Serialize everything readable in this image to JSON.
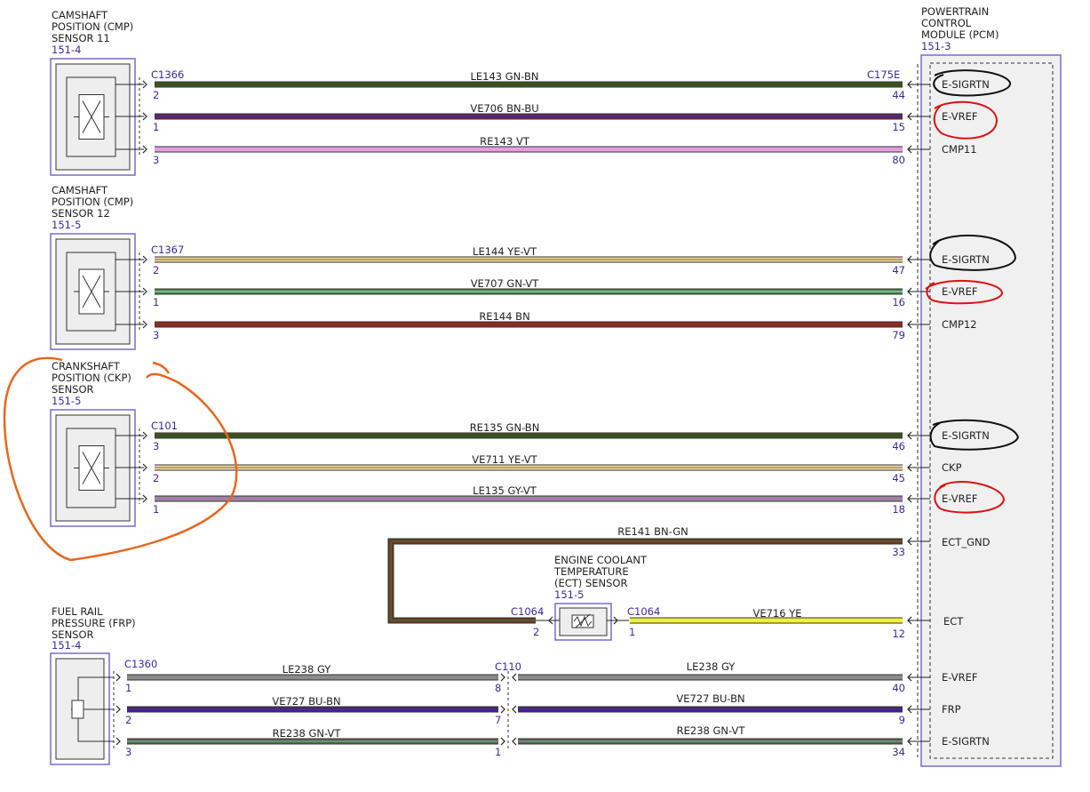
{
  "pcm": {
    "title": [
      "POWERTRAIN",
      "CONTROL",
      "MODULE (PCM)"
    ],
    "ref": "151-3",
    "connector": "C175E"
  },
  "sensors": [
    {
      "name": [
        "CAMSHAFT",
        "POSITION (CMP)",
        "SENSOR 11"
      ],
      "ref": "151-4",
      "connector": "C1366",
      "wires": [
        {
          "circuit": "LE143  GN-BN",
          "pin": 2,
          "pcm_pin": 44,
          "signal": "E-SIGRTN"
        },
        {
          "circuit": "VE706  BN-BU",
          "pin": 1,
          "pcm_pin": 15,
          "signal": "E-VREF"
        },
        {
          "circuit": "RE143   VT",
          "pin": 3,
          "pcm_pin": 80,
          "signal": "CMP11"
        }
      ]
    },
    {
      "name": [
        "CAMSHAFT",
        "POSITION (CMP)",
        "SENSOR 12"
      ],
      "ref": "151-5",
      "connector": "C1367",
      "wires": [
        {
          "circuit": "LE144  YE-VT",
          "pin": 2,
          "pcm_pin": 47,
          "signal": "E-SIGRTN"
        },
        {
          "circuit": "VE707  GN-VT",
          "pin": 1,
          "pcm_pin": 16,
          "signal": "E-VREF"
        },
        {
          "circuit": "RE144   BN",
          "pin": 3,
          "pcm_pin": 79,
          "signal": "CMP12"
        }
      ]
    },
    {
      "name": [
        "CRANKSHAFT",
        "POSITION (CKP)",
        "SENSOR"
      ],
      "ref": "151-5",
      "connector": "C101",
      "wires": [
        {
          "circuit": "RE135  GN-BN",
          "pin": 3,
          "pcm_pin": 46,
          "signal": "E-SIGRTN"
        },
        {
          "circuit": "VE711  YE-VT",
          "pin": 2,
          "pcm_pin": 45,
          "signal": "CKP"
        },
        {
          "circuit": "LE135  GY-VT",
          "pin": 1,
          "pcm_pin": 18,
          "signal": "E-VREF"
        }
      ]
    }
  ],
  "ect": {
    "name": [
      "ENGINE COOLANT",
      "TEMPERATURE",
      "(ECT) SENSOR"
    ],
    "ref": "151-5",
    "connector": "C1064",
    "ground": {
      "circuit": "RE141  BN-GN",
      "pin": 2,
      "pcm_pin": 33,
      "signal": "ECT_GND"
    },
    "signal": {
      "circuit": "VE716  YE",
      "pin": 1,
      "pcm_pin": 12,
      "signal": "ECT"
    }
  },
  "frp": {
    "name": [
      "FUEL RAIL",
      "PRESSURE (FRP)",
      "SENSOR"
    ],
    "ref": "151-4",
    "connector": "C1360",
    "inline_connector": "C110",
    "wires": [
      {
        "circuit": "LE238  GY",
        "pin": 1,
        "inline_pin": 8,
        "pcm_pin": 40,
        "signal": "E-VREF"
      },
      {
        "circuit": "VE727  BU-BN",
        "pin": 2,
        "inline_pin": 7,
        "pcm_pin": 9,
        "signal": "FRP"
      },
      {
        "circuit": "RE238  GN-VT",
        "pin": 3,
        "inline_pin": 1,
        "pcm_pin": 34,
        "signal": "E-SIGRTN"
      }
    ]
  }
}
